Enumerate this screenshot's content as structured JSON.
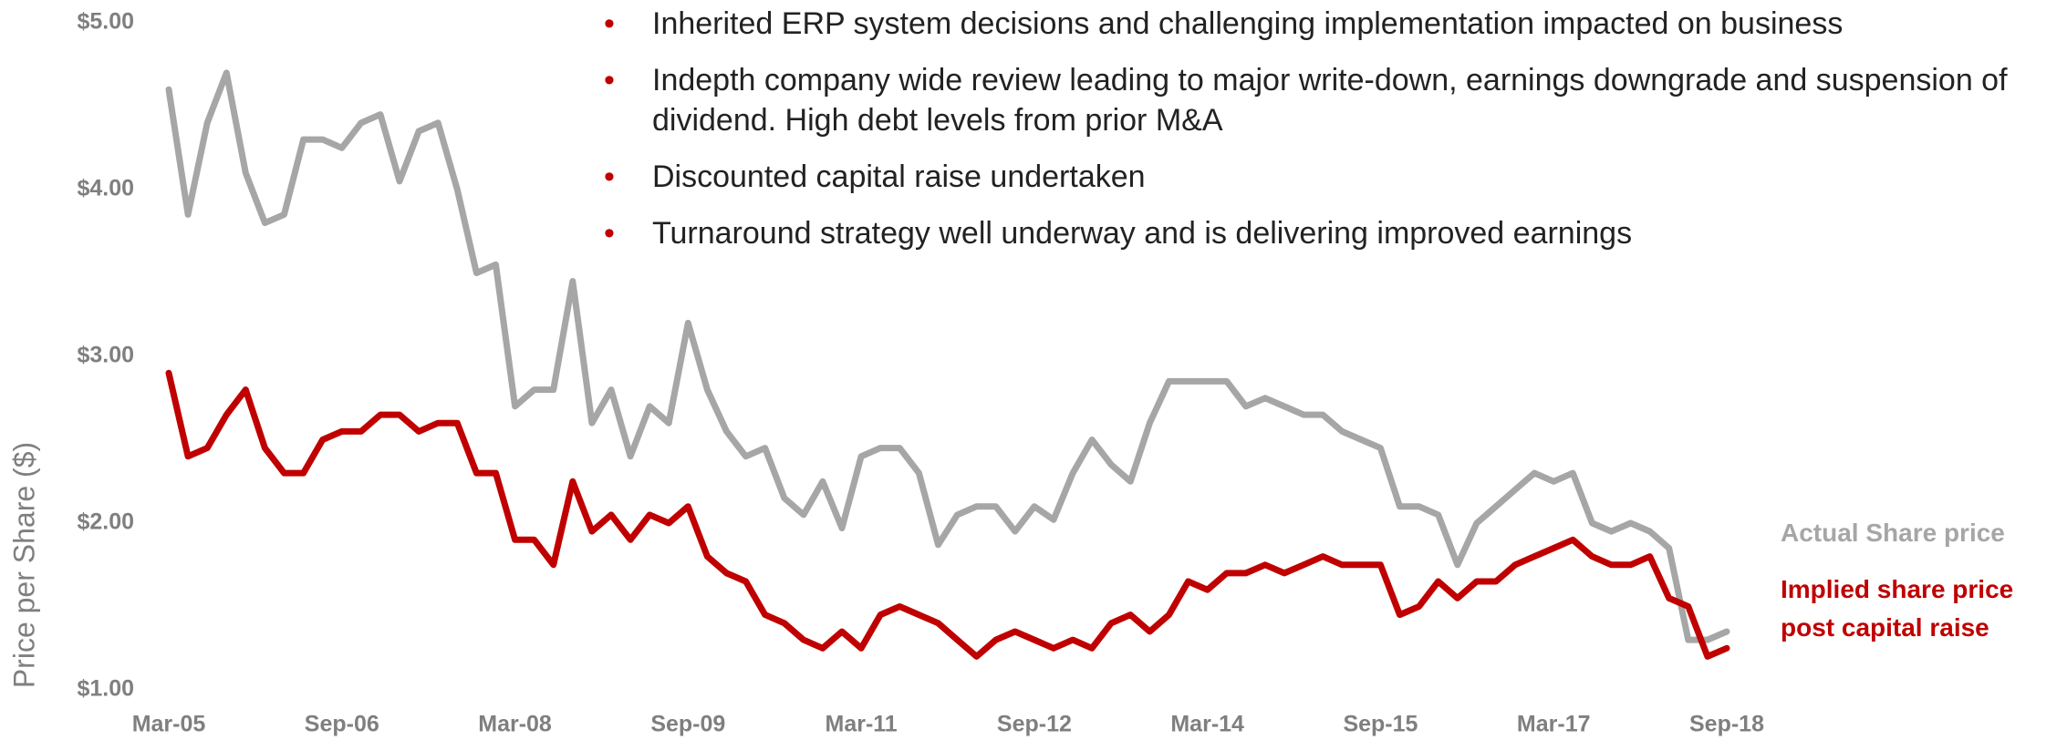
{
  "bullets": [
    "Inherited ERP system decisions and challenging implementation impacted on business",
    "Indepth company wide review leading to major write-down, earnings downgrade and suspension of dividend. High debt levels from prior M&A",
    "Discounted capital raise undertaken",
    "Turnaround strategy well underway and is delivering improved earnings"
  ],
  "chart_data": {
    "type": "line",
    "y_label": "Price per Share ($)",
    "categories": [
      "Mar-05",
      null,
      null,
      null,
      null,
      null,
      null,
      null,
      null,
      "Sep-06",
      null,
      null,
      null,
      null,
      null,
      null,
      null,
      null,
      "Mar-08",
      null,
      null,
      null,
      null,
      null,
      null,
      null,
      null,
      "Sep-09",
      null,
      null,
      null,
      null,
      null,
      null,
      null,
      null,
      "Mar-11",
      null,
      null,
      null,
      null,
      null,
      null,
      null,
      null,
      "Sep-12",
      null,
      null,
      null,
      null,
      null,
      null,
      null,
      null,
      "Mar-14",
      null,
      null,
      null,
      null,
      null,
      null,
      null,
      null,
      "Sep-15",
      null,
      null,
      null,
      null,
      null,
      null,
      null,
      null,
      "Mar-17",
      null,
      null,
      null,
      null,
      null,
      null,
      null,
      null,
      "Sep-18"
    ],
    "series": [
      {
        "name": "Actual Share price",
        "color": "#a6a6a6",
        "values": [
          4.6,
          3.85,
          4.4,
          4.7,
          4.1,
          3.8,
          3.85,
          4.3,
          4.3,
          4.25,
          4.4,
          4.45,
          4.05,
          4.35,
          4.4,
          4.0,
          3.5,
          3.55,
          2.7,
          2.8,
          2.8,
          3.45,
          2.6,
          2.8,
          2.4,
          2.7,
          2.6,
          3.2,
          2.8,
          2.55,
          2.4,
          2.45,
          2.15,
          2.05,
          2.25,
          1.97,
          2.4,
          2.45,
          2.45,
          2.3,
          1.87,
          2.05,
          2.1,
          2.1,
          1.95,
          2.1,
          2.02,
          2.3,
          2.5,
          2.35,
          2.25,
          2.6,
          2.85,
          2.85,
          2.85,
          2.85,
          2.7,
          2.75,
          2.7,
          2.65,
          2.65,
          2.55,
          2.5,
          2.45,
          2.1,
          2.1,
          2.05,
          1.75,
          2.0,
          2.1,
          2.2,
          2.3,
          2.25,
          2.3,
          2.0,
          1.95,
          2.0,
          1.95,
          1.85,
          1.3,
          1.3,
          1.35
        ]
      },
      {
        "name": "Implied share price post capital raise",
        "color": "#c00000",
        "values": [
          2.9,
          2.4,
          2.45,
          2.65,
          2.8,
          2.45,
          2.3,
          2.3,
          2.5,
          2.55,
          2.55,
          2.65,
          2.65,
          2.55,
          2.6,
          2.6,
          2.3,
          2.3,
          1.9,
          1.9,
          1.75,
          2.25,
          1.95,
          2.05,
          1.9,
          2.05,
          2.0,
          2.1,
          1.8,
          1.7,
          1.65,
          1.45,
          1.4,
          1.3,
          1.25,
          1.35,
          1.25,
          1.45,
          1.5,
          1.45,
          1.4,
          1.3,
          1.2,
          1.3,
          1.35,
          1.3,
          1.25,
          1.3,
          1.25,
          1.4,
          1.45,
          1.35,
          1.45,
          1.65,
          1.6,
          1.7,
          1.7,
          1.75,
          1.7,
          1.75,
          1.8,
          1.75,
          1.75,
          1.75,
          1.45,
          1.5,
          1.65,
          1.55,
          1.65,
          1.65,
          1.75,
          1.8,
          1.85,
          1.9,
          1.8,
          1.75,
          1.75,
          1.8,
          1.55,
          1.5,
          1.2,
          1.25
        ]
      }
    ],
    "ylim": [
      1,
      5
    ],
    "yticks": [
      {
        "value": 1,
        "label": "$1.00"
      },
      {
        "value": 2,
        "label": "$2.00"
      },
      {
        "value": 3,
        "label": "$3.00"
      },
      {
        "value": 4,
        "label": "$4.00"
      },
      {
        "value": 5,
        "label": "$5.00"
      }
    ],
    "line_width": 7
  }
}
